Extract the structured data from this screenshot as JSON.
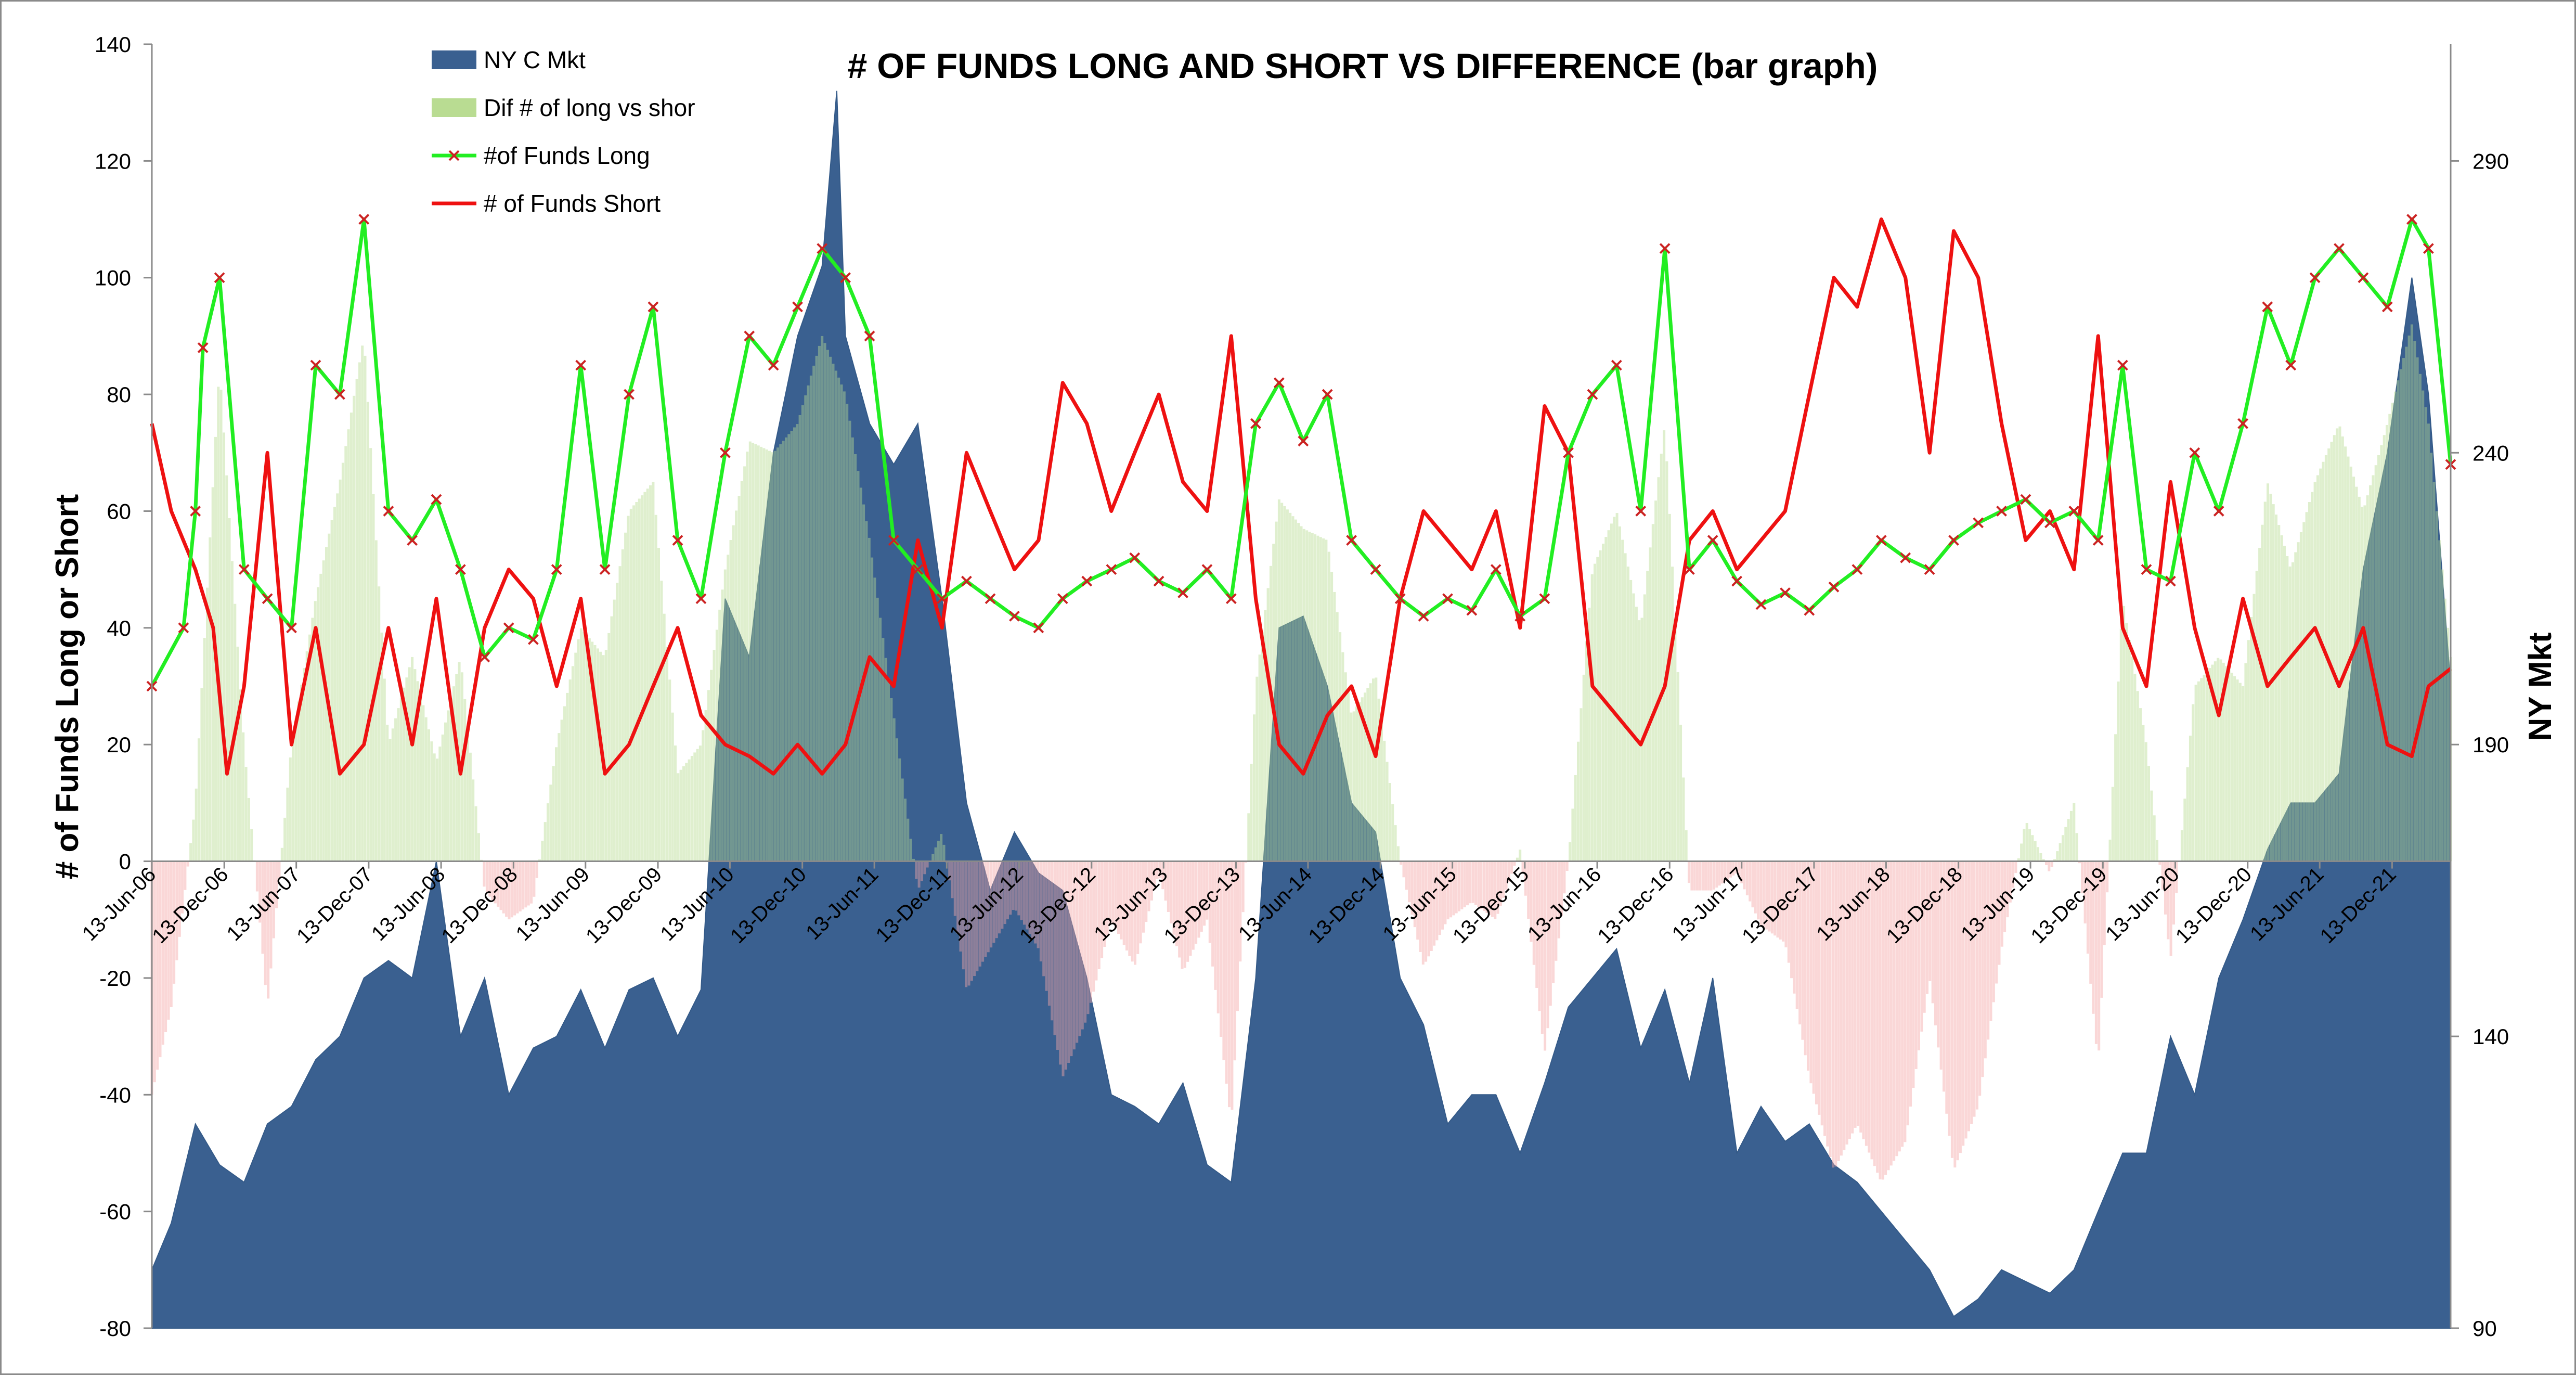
{
  "chart_data": {
    "type": "bar",
    "title": "# OF FUNDS LONG AND SHORT VS DIFFERENCE (bar graph)",
    "ylabel": "# of Funds Long or Short",
    "y2label": "NY Mkt",
    "ylim": [
      -80,
      140
    ],
    "y2lim": [
      90,
      310
    ],
    "yticks": [
      140,
      120,
      100,
      80,
      60,
      40,
      20,
      0,
      -20,
      -40,
      -60,
      -80
    ],
    "y2ticks": [
      290,
      240,
      190,
      140,
      90
    ],
    "x_start": "2006-06-13",
    "x_end": "2022-05-10",
    "xticks": [
      "13-Jun-06",
      "13-Dec-06",
      "13-Jun-07",
      "13-Dec-07",
      "13-Jun-08",
      "13-Dec-08",
      "13-Jun-09",
      "13-Dec-09",
      "13-Jun-10",
      "13-Dec-10",
      "13-Jun-11",
      "13-Dec-11",
      "13-Jun-12",
      "13-Dec-12",
      "13-Jun-13",
      "13-Dec-13",
      "13-Jun-14",
      "13-Dec-14",
      "13-Jun-15",
      "13-Dec-15",
      "13-Jun-16",
      "13-Dec-16",
      "13-Jun-17",
      "13-Dec-17",
      "13-Jun-18",
      "13-Dec-18",
      "13-Jun-19",
      "13-Dec-19",
      "13-Jun-20",
      "13-Dec-20",
      "13-Jun-21",
      "13-Dec-21"
    ],
    "legend_position": "top-left",
    "legend": [
      {
        "name": "NY C Mkt",
        "kind": "area",
        "color": "#3a6090"
      },
      {
        "name": "Dif # of long vs shor",
        "kind": "bar",
        "color": "#b9dc92"
      },
      {
        "name": "#of Funds Long",
        "kind": "line-marker",
        "color": "#22ee22",
        "marker_color": "#cc2222"
      },
      {
        "name": "# of Funds Short",
        "kind": "line",
        "color": "#ee1111"
      }
    ],
    "series_long": {
      "name": "#of Funds Long",
      "x": [
        "2006-06-13",
        "2006-09-01",
        "2006-10-01",
        "2006-10-20",
        "2006-12-01",
        "2007-02-01",
        "2007-04-01",
        "2007-06-01",
        "2007-08-01",
        "2007-10-01",
        "2007-12-01",
        "2008-02-01",
        "2008-04-01",
        "2008-06-01",
        "2008-08-01",
        "2008-10-01",
        "2008-12-01",
        "2009-02-01",
        "2009-04-01",
        "2009-06-01",
        "2009-08-01",
        "2009-10-01",
        "2009-12-01",
        "2010-02-01",
        "2010-04-01",
        "2010-06-01",
        "2010-08-01",
        "2010-10-01",
        "2010-12-01",
        "2011-02-01",
        "2011-04-01",
        "2011-06-01",
        "2011-08-01",
        "2011-10-01",
        "2011-12-01",
        "2012-02-01",
        "2012-04-01",
        "2012-06-01",
        "2012-08-01",
        "2012-10-01",
        "2012-12-01",
        "2013-02-01",
        "2013-04-01",
        "2013-06-01",
        "2013-08-01",
        "2013-10-01",
        "2013-12-01",
        "2014-02-01",
        "2014-04-01",
        "2014-06-01",
        "2014-08-01",
        "2014-10-01",
        "2014-12-01",
        "2015-02-01",
        "2015-04-01",
        "2015-06-01",
        "2015-08-01",
        "2015-10-01",
        "2015-12-01",
        "2016-02-01",
        "2016-04-01",
        "2016-06-01",
        "2016-08-01",
        "2016-10-01",
        "2016-12-01",
        "2017-02-01",
        "2017-04-01",
        "2017-06-01",
        "2017-08-01",
        "2017-10-01",
        "2017-12-01",
        "2018-02-01",
        "2018-04-01",
        "2018-06-01",
        "2018-08-01",
        "2018-10-01",
        "2018-12-01",
        "2019-02-01",
        "2019-04-01",
        "2019-06-01",
        "2019-08-01",
        "2019-10-01",
        "2019-12-01",
        "2020-02-01",
        "2020-04-01",
        "2020-06-01",
        "2020-08-01",
        "2020-10-01",
        "2020-12-01",
        "2021-02-01",
        "2021-04-01",
        "2021-06-01",
        "2021-08-01",
        "2021-10-01",
        "2021-12-01",
        "2022-02-01",
        "2022-03-15",
        "2022-05-10"
      ],
      "values": [
        30,
        40,
        60,
        88,
        100,
        50,
        45,
        40,
        85,
        80,
        110,
        60,
        55,
        62,
        50,
        35,
        40,
        38,
        50,
        85,
        50,
        80,
        95,
        55,
        45,
        70,
        90,
        85,
        95,
        105,
        100,
        90,
        55,
        50,
        45,
        48,
        45,
        42,
        40,
        45,
        48,
        50,
        52,
        48,
        46,
        50,
        45,
        75,
        82,
        72,
        80,
        55,
        50,
        45,
        42,
        45,
        43,
        50,
        42,
        45,
        70,
        80,
        85,
        60,
        105,
        50,
        55,
        48,
        44,
        46,
        43,
        47,
        50,
        55,
        52,
        50,
        55,
        58,
        60,
        62,
        58,
        60,
        55,
        85,
        50,
        48,
        70,
        60,
        75,
        95,
        85,
        100,
        105,
        100,
        95,
        110,
        105,
        68
      ]
    },
    "series_short": {
      "name": "# of Funds Short",
      "x": [
        "2006-06-13",
        "2006-08-01",
        "2006-10-01",
        "2006-11-15",
        "2006-12-20",
        "2007-02-01",
        "2007-04-01",
        "2007-06-01",
        "2007-08-01",
        "2007-10-01",
        "2007-12-01",
        "2008-02-01",
        "2008-04-01",
        "2008-06-01",
        "2008-08-01",
        "2008-10-01",
        "2008-12-01",
        "2009-02-01",
        "2009-04-01",
        "2009-06-01",
        "2009-08-01",
        "2009-10-01",
        "2009-12-01",
        "2010-02-01",
        "2010-04-01",
        "2010-06-01",
        "2010-08-01",
        "2010-10-01",
        "2010-12-01",
        "2011-02-01",
        "2011-04-01",
        "2011-06-01",
        "2011-08-01",
        "2011-10-01",
        "2011-12-01",
        "2012-02-01",
        "2012-04-01",
        "2012-06-01",
        "2012-08-01",
        "2012-10-01",
        "2012-12-01",
        "2013-02-01",
        "2013-04-01",
        "2013-06-01",
        "2013-08-01",
        "2013-10-01",
        "2013-12-01",
        "2014-02-01",
        "2014-04-01",
        "2014-06-01",
        "2014-08-01",
        "2014-10-01",
        "2014-12-01",
        "2015-02-01",
        "2015-04-01",
        "2015-06-01",
        "2015-08-01",
        "2015-10-01",
        "2015-12-01",
        "2016-02-01",
        "2016-04-01",
        "2016-06-01",
        "2016-08-01",
        "2016-10-01",
        "2016-12-01",
        "2017-02-01",
        "2017-04-01",
        "2017-06-01",
        "2017-08-01",
        "2017-10-01",
        "2017-12-01",
        "2018-02-01",
        "2018-04-01",
        "2018-06-01",
        "2018-08-01",
        "2018-10-01",
        "2018-12-01",
        "2019-02-01",
        "2019-04-01",
        "2019-06-01",
        "2019-08-01",
        "2019-10-01",
        "2019-12-01",
        "2020-02-01",
        "2020-04-01",
        "2020-06-01",
        "2020-08-01",
        "2020-10-01",
        "2020-12-01",
        "2021-02-01",
        "2021-04-01",
        "2021-06-01",
        "2021-08-01",
        "2021-10-01",
        "2021-12-01",
        "2022-02-01",
        "2022-03-15",
        "2022-05-10"
      ],
      "values": [
        75,
        60,
        50,
        40,
        15,
        30,
        70,
        20,
        40,
        15,
        20,
        40,
        20,
        45,
        15,
        40,
        50,
        45,
        30,
        45,
        15,
        20,
        30,
        40,
        25,
        20,
        18,
        15,
        20,
        15,
        20,
        35,
        30,
        55,
        40,
        70,
        60,
        50,
        55,
        82,
        75,
        60,
        70,
        80,
        65,
        60,
        90,
        45,
        20,
        15,
        25,
        30,
        18,
        45,
        60,
        55,
        50,
        60,
        40,
        78,
        70,
        30,
        25,
        20,
        30,
        55,
        60,
        50,
        55,
        60,
        80,
        100,
        95,
        110,
        100,
        70,
        108,
        100,
        75,
        55,
        60,
        50,
        90,
        40,
        30,
        65,
        40,
        25,
        45,
        30,
        35,
        40,
        30,
        40,
        20,
        18,
        30,
        33
      ]
    },
    "series_diff": {
      "name": "Dif # of long vs shor",
      "x": [
        "2006-06-13",
        "2006-08-01",
        "2006-10-01",
        "2006-12-01",
        "2007-02-01",
        "2007-04-01",
        "2007-06-01",
        "2007-08-01",
        "2007-10-01",
        "2007-12-01",
        "2008-02-01",
        "2008-04-01",
        "2008-06-01",
        "2008-08-01",
        "2008-10-01",
        "2008-12-01",
        "2009-02-01",
        "2009-04-01",
        "2009-06-01",
        "2009-08-01",
        "2009-10-01",
        "2009-12-01",
        "2010-02-01",
        "2010-04-01",
        "2010-06-01",
        "2010-08-01",
        "2010-10-01",
        "2010-12-01",
        "2011-02-01",
        "2011-04-01",
        "2011-06-01",
        "2011-08-01",
        "2011-10-01",
        "2011-12-01",
        "2012-02-01",
        "2012-04-01",
        "2012-06-01",
        "2012-08-01",
        "2012-10-01",
        "2012-12-01",
        "2013-02-01",
        "2013-04-01",
        "2013-06-01",
        "2013-08-01",
        "2013-10-01",
        "2013-12-01",
        "2014-02-01",
        "2014-04-01",
        "2014-06-01",
        "2014-08-01",
        "2014-10-01",
        "2014-12-01",
        "2015-02-01",
        "2015-04-01",
        "2015-06-01",
        "2015-08-01",
        "2015-10-01",
        "2015-12-01",
        "2016-02-01",
        "2016-04-01",
        "2016-06-01",
        "2016-08-01",
        "2016-10-01",
        "2016-12-01",
        "2017-02-01",
        "2017-04-01",
        "2017-06-01",
        "2017-08-01",
        "2017-10-01",
        "2017-12-01",
        "2018-02-01",
        "2018-04-01",
        "2018-06-01",
        "2018-08-01",
        "2018-10-01",
        "2018-12-01",
        "2019-02-01",
        "2019-04-01",
        "2019-06-01",
        "2019-08-01",
        "2019-10-01",
        "2019-12-01",
        "2020-02-01",
        "2020-04-01",
        "2020-06-01",
        "2020-08-01",
        "2020-10-01",
        "2020-12-01",
        "2021-02-01",
        "2021-04-01",
        "2021-06-01",
        "2021-08-01",
        "2021-10-01",
        "2021-12-01",
        "2022-02-01",
        "2022-03-15",
        "2022-05-10"
      ],
      "values": [
        -40,
        -25,
        10,
        85,
        20,
        -25,
        20,
        45,
        65,
        90,
        20,
        35,
        17,
        35,
        -5,
        -10,
        -7,
        20,
        40,
        35,
        60,
        65,
        15,
        20,
        50,
        72,
        70,
        75,
        90,
        80,
        55,
        25,
        -5,
        5,
        -22,
        -15,
        -8,
        -15,
        -37,
        -27,
        -10,
        -18,
        -2,
        -19,
        -10,
        -45,
        30,
        62,
        57,
        55,
        25,
        32,
        0,
        -18,
        -10,
        -7,
        -10,
        2,
        -33,
        0,
        50,
        60,
        40,
        75,
        -5,
        -5,
        -2,
        -11,
        -14,
        -37,
        -53,
        -45,
        -55,
        -48,
        -20,
        -53,
        -42,
        -15,
        7,
        -2,
        10,
        -35,
        45,
        20,
        -17,
        30,
        35,
        30,
        65,
        50,
        65,
        75,
        60,
        75,
        92,
        75,
        35
      ]
    },
    "series_nymkt": {
      "name": "NY C Mkt",
      "axis": "right",
      "x": [
        "2006-06-13",
        "2006-08-01",
        "2006-10-01",
        "2006-12-01",
        "2007-02-01",
        "2007-04-01",
        "2007-06-01",
        "2007-08-01",
        "2007-10-01",
        "2007-12-01",
        "2008-02-01",
        "2008-04-01",
        "2008-06-01",
        "2008-08-01",
        "2008-10-01",
        "2008-12-01",
        "2009-02-01",
        "2009-04-01",
        "2009-06-01",
        "2009-08-01",
        "2009-10-01",
        "2009-12-01",
        "2010-02-01",
        "2010-04-01",
        "2010-06-01",
        "2010-08-01",
        "2010-10-01",
        "2010-12-01",
        "2011-02-01",
        "2011-03-10",
        "2011-04-01",
        "2011-06-01",
        "2011-08-01",
        "2011-10-01",
        "2011-12-01",
        "2012-02-01",
        "2012-04-01",
        "2012-06-01",
        "2012-08-01",
        "2012-10-01",
        "2012-12-01",
        "2013-02-01",
        "2013-04-01",
        "2013-06-01",
        "2013-08-01",
        "2013-10-01",
        "2013-12-01",
        "2014-02-01",
        "2014-04-01",
        "2014-06-01",
        "2014-08-01",
        "2014-10-01",
        "2014-12-01",
        "2015-02-01",
        "2015-04-01",
        "2015-06-01",
        "2015-08-01",
        "2015-10-01",
        "2015-12-01",
        "2016-02-01",
        "2016-04-01",
        "2016-06-01",
        "2016-08-01",
        "2016-10-01",
        "2016-12-01",
        "2017-02-01",
        "2017-04-01",
        "2017-06-01",
        "2017-08-01",
        "2017-10-01",
        "2017-12-01",
        "2018-02-01",
        "2018-04-01",
        "2018-06-01",
        "2018-08-01",
        "2018-10-01",
        "2018-12-01",
        "2019-02-01",
        "2019-04-01",
        "2019-06-01",
        "2019-08-01",
        "2019-10-01",
        "2019-12-01",
        "2020-02-01",
        "2020-04-01",
        "2020-06-01",
        "2020-08-01",
        "2020-10-01",
        "2020-12-01",
        "2021-02-01",
        "2021-04-01",
        "2021-06-01",
        "2021-08-01",
        "2021-10-01",
        "2021-12-01",
        "2022-02-01",
        "2022-03-15",
        "2022-05-10"
      ],
      "values": [
        100,
        108,
        125,
        118,
        115,
        125,
        128,
        136,
        140,
        150,
        153,
        150,
        170,
        140,
        150,
        130,
        138,
        140,
        148,
        138,
        148,
        150,
        140,
        148,
        215,
        205,
        240,
        260,
        272,
        302,
        260,
        245,
        238,
        245,
        215,
        180,
        165,
        175,
        168,
        165,
        150,
        130,
        128,
        125,
        132,
        118,
        115,
        150,
        210,
        212,
        200,
        180,
        175,
        150,
        142,
        125,
        130,
        130,
        120,
        132,
        145,
        150,
        155,
        138,
        148,
        132,
        150,
        120,
        128,
        122,
        125,
        118,
        115,
        110,
        105,
        100,
        92,
        95,
        100,
        98,
        96,
        100,
        110,
        120,
        120,
        140,
        130,
        150,
        160,
        172,
        180,
        180,
        185,
        220,
        240,
        270,
        250,
        200
      ]
    }
  }
}
